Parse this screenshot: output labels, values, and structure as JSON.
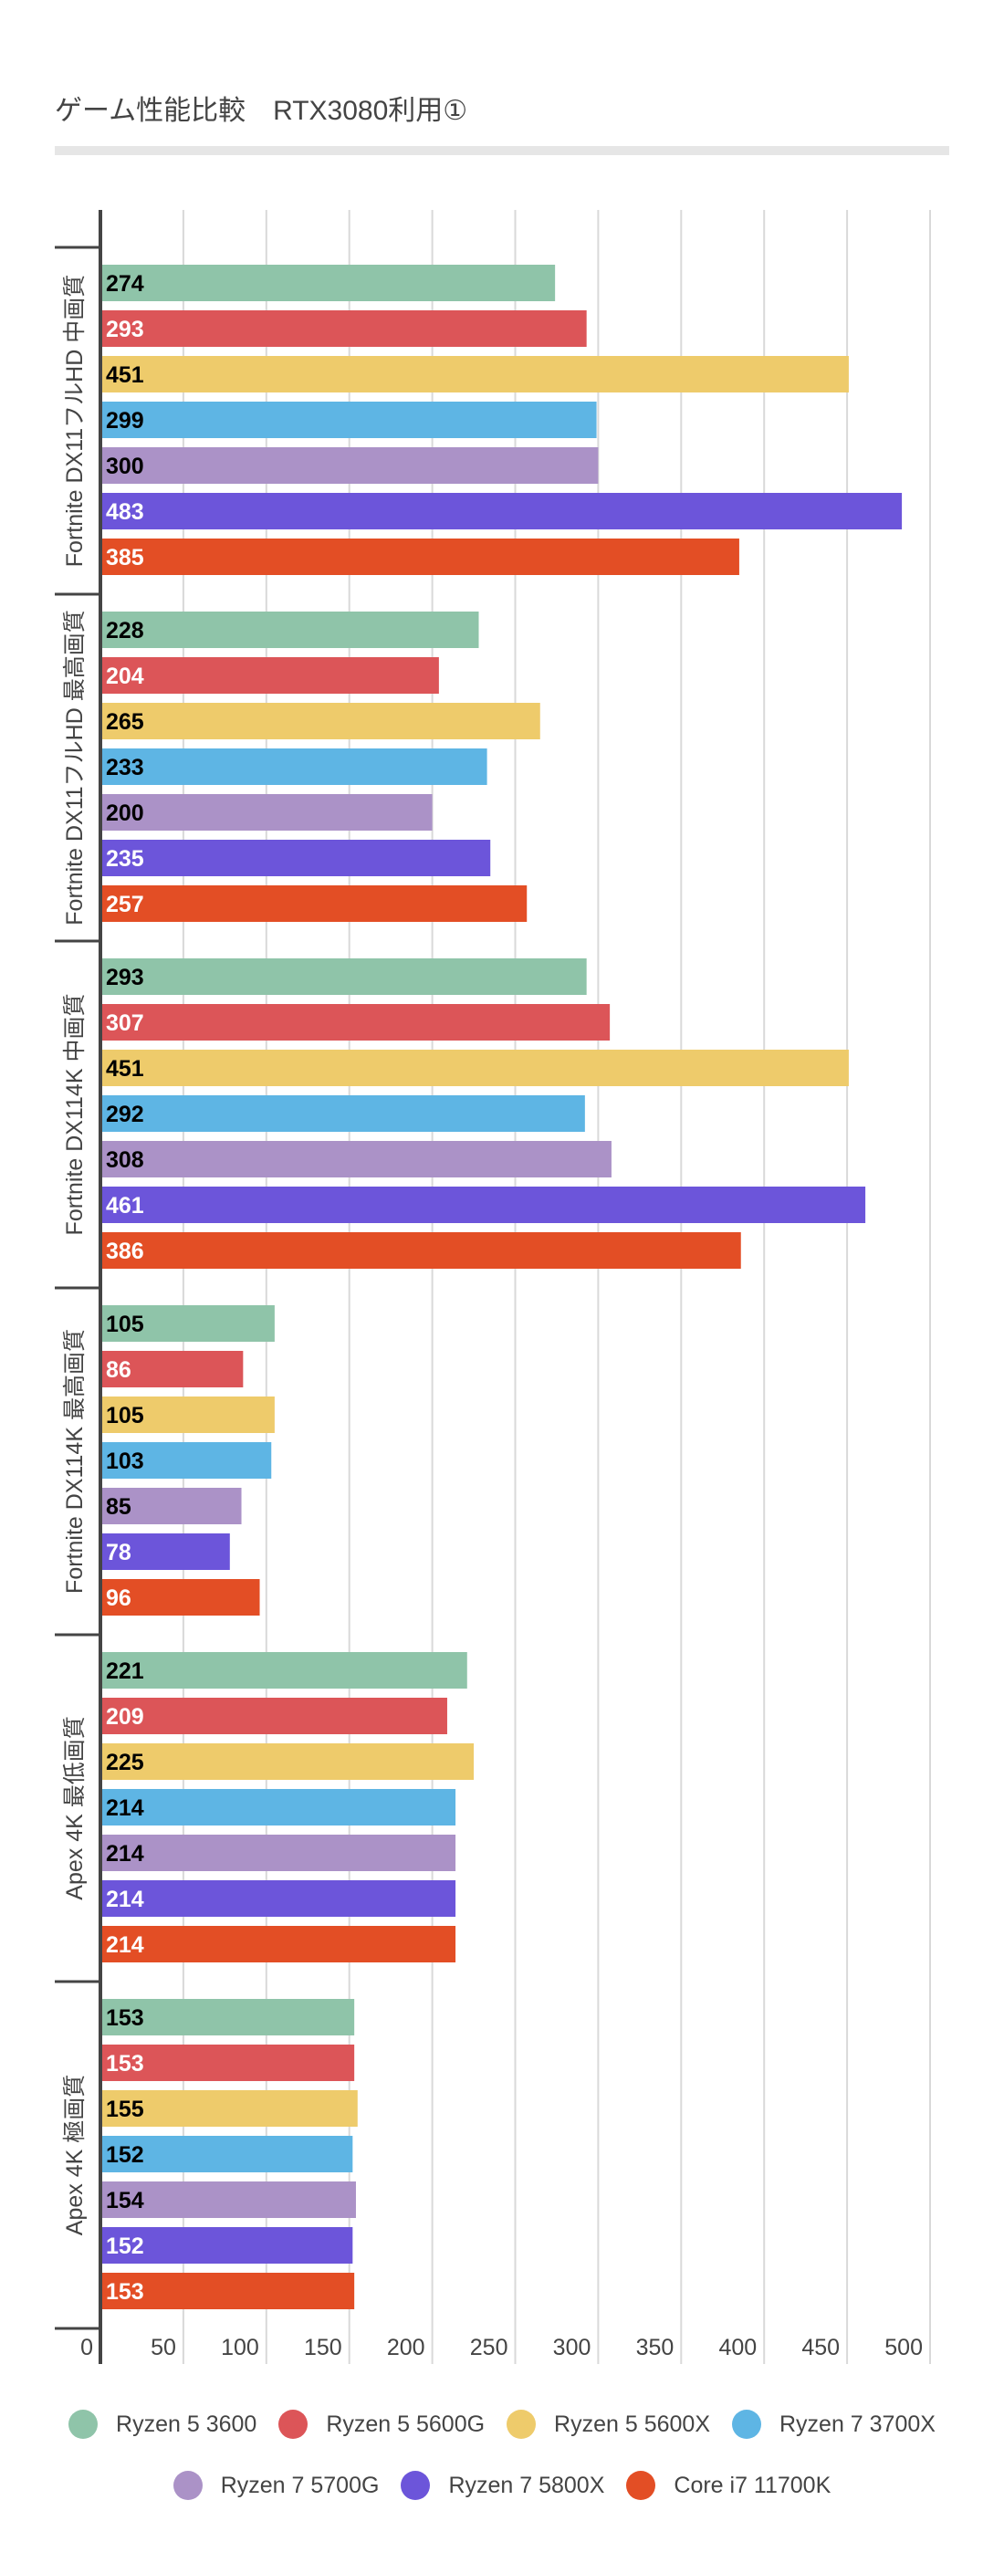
{
  "title": "ゲーム性能比較　RTX3080利用①",
  "chart_data": {
    "type": "bar",
    "orientation": "horizontal",
    "title": "ゲーム性能比較　RTX3080利用①",
    "xlabel": "",
    "ylabel": "",
    "xlim": [
      0,
      500
    ],
    "xticks": [
      0,
      50,
      100,
      150,
      200,
      250,
      300,
      350,
      400,
      450,
      500
    ],
    "grid": true,
    "legend_position": "bottom",
    "categories": [
      "Fortnite DX11フルHD 中画質",
      "Fortnite DX11フルHD 最高画質",
      "Fortnite DX114K 中画質",
      "Fortnite DX114K 最高画質",
      "Apex 4K 最低画質",
      "Apex 4K 極画質"
    ],
    "series": [
      {
        "name": "Ryzen 5 3600",
        "color": "#8FC4A9",
        "label_color": "#000000",
        "values": [
          274,
          228,
          293,
          105,
          221,
          153
        ]
      },
      {
        "name": "Ryzen 5 5600G",
        "color": "#DC5558",
        "label_color": "#ffffff",
        "values": [
          293,
          204,
          307,
          86,
          209,
          153
        ]
      },
      {
        "name": "Ryzen 5 5600X",
        "color": "#EECB6B",
        "label_color": "#000000",
        "values": [
          451,
          265,
          451,
          105,
          225,
          155
        ]
      },
      {
        "name": "Ryzen 7 3700X",
        "color": "#5EB5E4",
        "label_color": "#000000",
        "values": [
          299,
          233,
          292,
          103,
          214,
          152
        ]
      },
      {
        "name": "Ryzen 7 5700G",
        "color": "#AB92C7",
        "label_color": "#000000",
        "values": [
          300,
          200,
          308,
          85,
          214,
          154
        ]
      },
      {
        "name": "Ryzen 7 5800X",
        "color": "#6C55DA",
        "label_color": "#ffffff",
        "values": [
          483,
          235,
          461,
          78,
          214,
          152
        ]
      },
      {
        "name": "Core i7 11700K",
        "color": "#E34E25",
        "label_color": "#ffffff",
        "values": [
          385,
          257,
          386,
          96,
          214,
          153
        ]
      }
    ]
  },
  "legend": {
    "rows": [
      [
        "Ryzen 5 3600",
        "Ryzen 5 5600G",
        "Ryzen 5 5600X",
        "Ryzen 7 3700X"
      ],
      [
        "Ryzen 7 5700G",
        "Ryzen 7 5800X",
        "Core i7 11700K"
      ]
    ]
  }
}
